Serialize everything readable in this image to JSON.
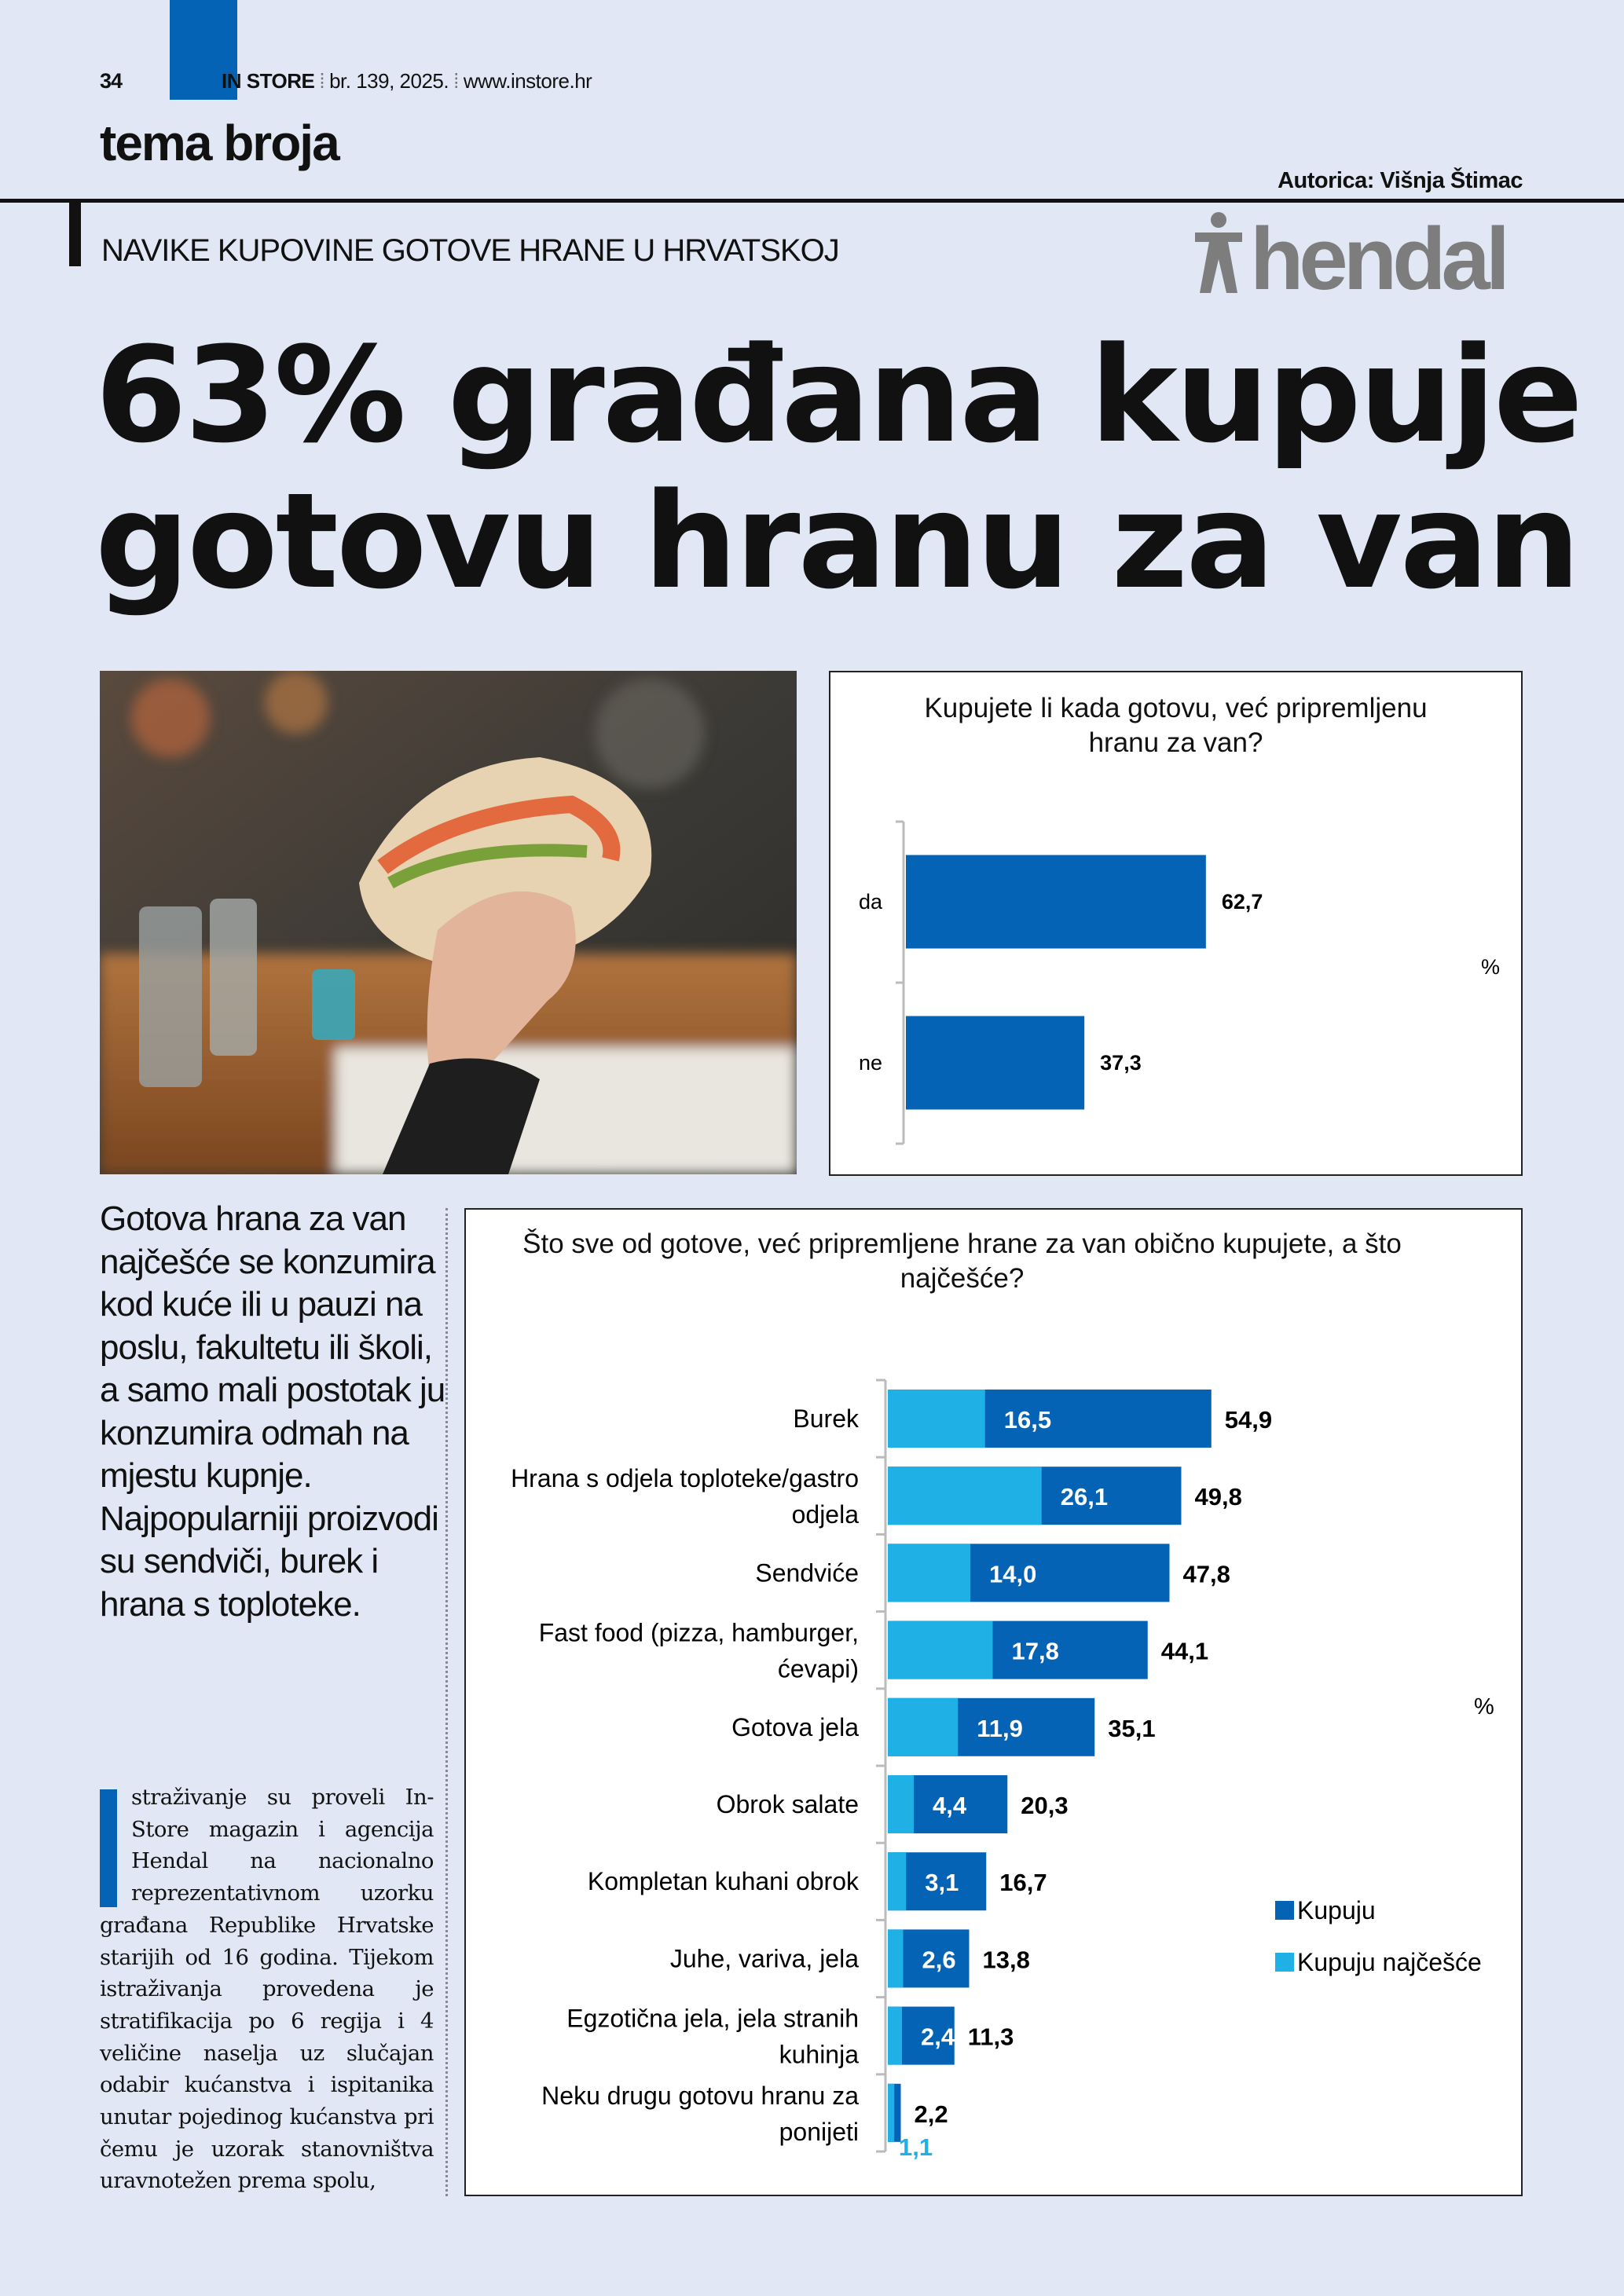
{
  "header": {
    "page_number": "34",
    "magazine": "IN STORE",
    "issue": "br. 139, 2025.",
    "website": "www.instore.hr",
    "section": "tema broja",
    "author": "Autorica: Višnja Štimac"
  },
  "kicker": "NAVIKE KUPOVINE GOTOVE HRANE U HRVATSKOJ",
  "partner_logo": "hendal",
  "headline": [
    "63% građana kupuje",
    "gotovu hranu za van"
  ],
  "lead": "Gotova hrana za van najčešće se konzumira kod kuće ili u pauzi na poslu, fakultetu ili školi, a samo mali postotak ju konzumira odmah na mjestu kupnje. Najpopularniji proizvodi su sendviči, burek i hrana s toploteke.",
  "body": "straživanje su proveli In-Store magazin i agencija Hendal na nacionalno reprezentativnom uzorku građana Republike Hrvatske starijih od 16 godina. Tijekom istraživanja provedena je stratifikacija po 6 regija i 4 veličine naselja uz slučajan odabir kućanstva i ispitanika unutar pojedinog kućanstva pri čemu je uzorak stanovništva uravnotežen prema spolu,",
  "colors": {
    "dark_blue": "#0563b5",
    "light_blue": "#1fb0e6",
    "background": "#e1e7f4"
  },
  "chart_data": [
    {
      "type": "bar",
      "orientation": "horizontal",
      "title": "Kupujete li kada gotovu, već pripremljenu hranu za van?",
      "categories": [
        "da",
        "ne"
      ],
      "values": [
        62.7,
        37.3
      ],
      "value_labels": [
        "62,7",
        "37,3"
      ],
      "unit_label": "%",
      "grid": false
    },
    {
      "type": "bar",
      "orientation": "horizontal",
      "title": "Što sve od gotove, već pripremljene hrane za van obično kupujete, a što najčešće?",
      "categories": [
        "Burek",
        "Hrana s odjela toploteke/gastro odjela",
        "Sendviće",
        "Fast food (pizza, hamburger, ćevapi)",
        "Gotova jela",
        "Obrok salate",
        "Kompletan kuhani obrok",
        "Juhe, variva, jela",
        "Egzotična jela, jela stranih kuhinja",
        "Neku drugu gotovu hranu za ponijeti"
      ],
      "series": [
        {
          "name": "Kupuju",
          "values": [
            54.9,
            49.8,
            47.8,
            44.1,
            35.1,
            20.3,
            16.7,
            13.8,
            11.3,
            2.2
          ],
          "value_labels": [
            "54,9",
            "49,8",
            "47,8",
            "44,1",
            "35,1",
            "20,3",
            "16,7",
            "13,8",
            "11,3",
            "2,2"
          ]
        },
        {
          "name": "Kupuju najčešće",
          "values": [
            16.5,
            26.1,
            14.0,
            17.8,
            11.9,
            4.4,
            3.1,
            2.6,
            2.4,
            1.1
          ],
          "value_labels": [
            "16,5",
            "26,1",
            "14,0",
            "17,8",
            "11,9",
            "4,4",
            "3,1",
            "2,6",
            "2,4",
            "1,1"
          ]
        }
      ],
      "unit_label": "%",
      "legend": "right",
      "grid": false
    }
  ]
}
